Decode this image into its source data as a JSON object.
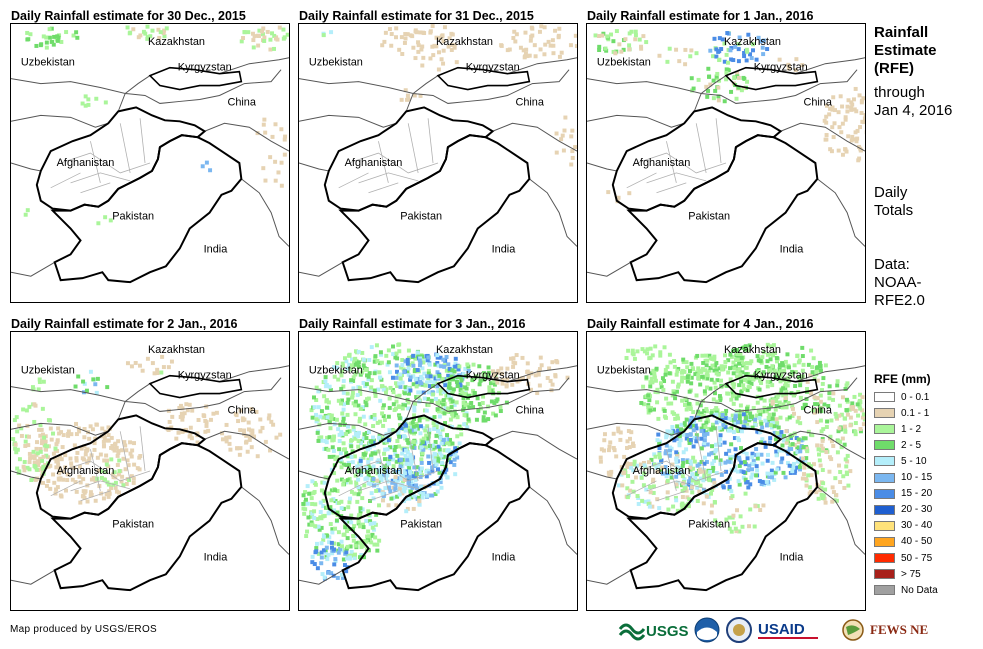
{
  "panels": [
    {
      "title": "Daily Rainfall estimate for 30 Dec., 2015",
      "rainfall_intensity": "light"
    },
    {
      "title": "Daily Rainfall estimate for 31 Dec., 2015",
      "rainfall_intensity": "very light"
    },
    {
      "title": "Daily Rainfall estimate for 1 Jan., 2016",
      "rainfall_intensity": "light"
    },
    {
      "title": "Daily Rainfall estimate for 2 Jan., 2016",
      "rainfall_intensity": "moderate"
    },
    {
      "title": "Daily Rainfall estimate for 3 Jan., 2016",
      "rainfall_intensity": "heavy"
    },
    {
      "title": "Daily Rainfall estimate for 4 Jan., 2016",
      "rainfall_intensity": "heavy"
    }
  ],
  "map_labels": {
    "kazakhstan": "Kazakhstan",
    "uzbekistan": "Uzbekistan",
    "kyrgyzstan": "Kyrgyzstan",
    "china": "China",
    "afghanistan": "Afghanistan",
    "pakistan": "Pakistan",
    "india": "India"
  },
  "sidebar": {
    "title_lines": [
      "Rainfall",
      "Estimate",
      "(RFE)"
    ],
    "through_lines": [
      "through",
      "Jan 4, 2016"
    ],
    "daily_lines": [
      "Daily",
      "Totals"
    ],
    "data_lines": [
      "Data:",
      "NOAA-",
      "RFE2.0"
    ]
  },
  "legend": {
    "title": "RFE (mm)",
    "items": [
      {
        "label": "0 - 0.1",
        "color": "#ffffff"
      },
      {
        "label": "0.1 - 1",
        "color": "#e6d3b3"
      },
      {
        "label": "1 - 2",
        "color": "#aaf59a"
      },
      {
        "label": "2 - 5",
        "color": "#6fdc6a"
      },
      {
        "label": "5 - 10",
        "color": "#b4eefa"
      },
      {
        "label": "10 - 15",
        "color": "#7bb7f0"
      },
      {
        "label": "15 - 20",
        "color": "#4a8ce6"
      },
      {
        "label": "20 - 30",
        "color": "#1f5fd0"
      },
      {
        "label": "30 - 40",
        "color": "#ffe27a"
      },
      {
        "label": "40 - 50",
        "color": "#ffa51f"
      },
      {
        "label": "50 - 75",
        "color": "#ff2a00"
      },
      {
        "label": "> 75",
        "color": "#a8201a"
      },
      {
        "label": "No Data",
        "color": "#a0a0a0"
      }
    ]
  },
  "credit": "Map produced by USGS/EROS",
  "logos": {
    "usgs": "USGS",
    "usaid": "USAID",
    "fewsnet": "FEWS NET"
  }
}
